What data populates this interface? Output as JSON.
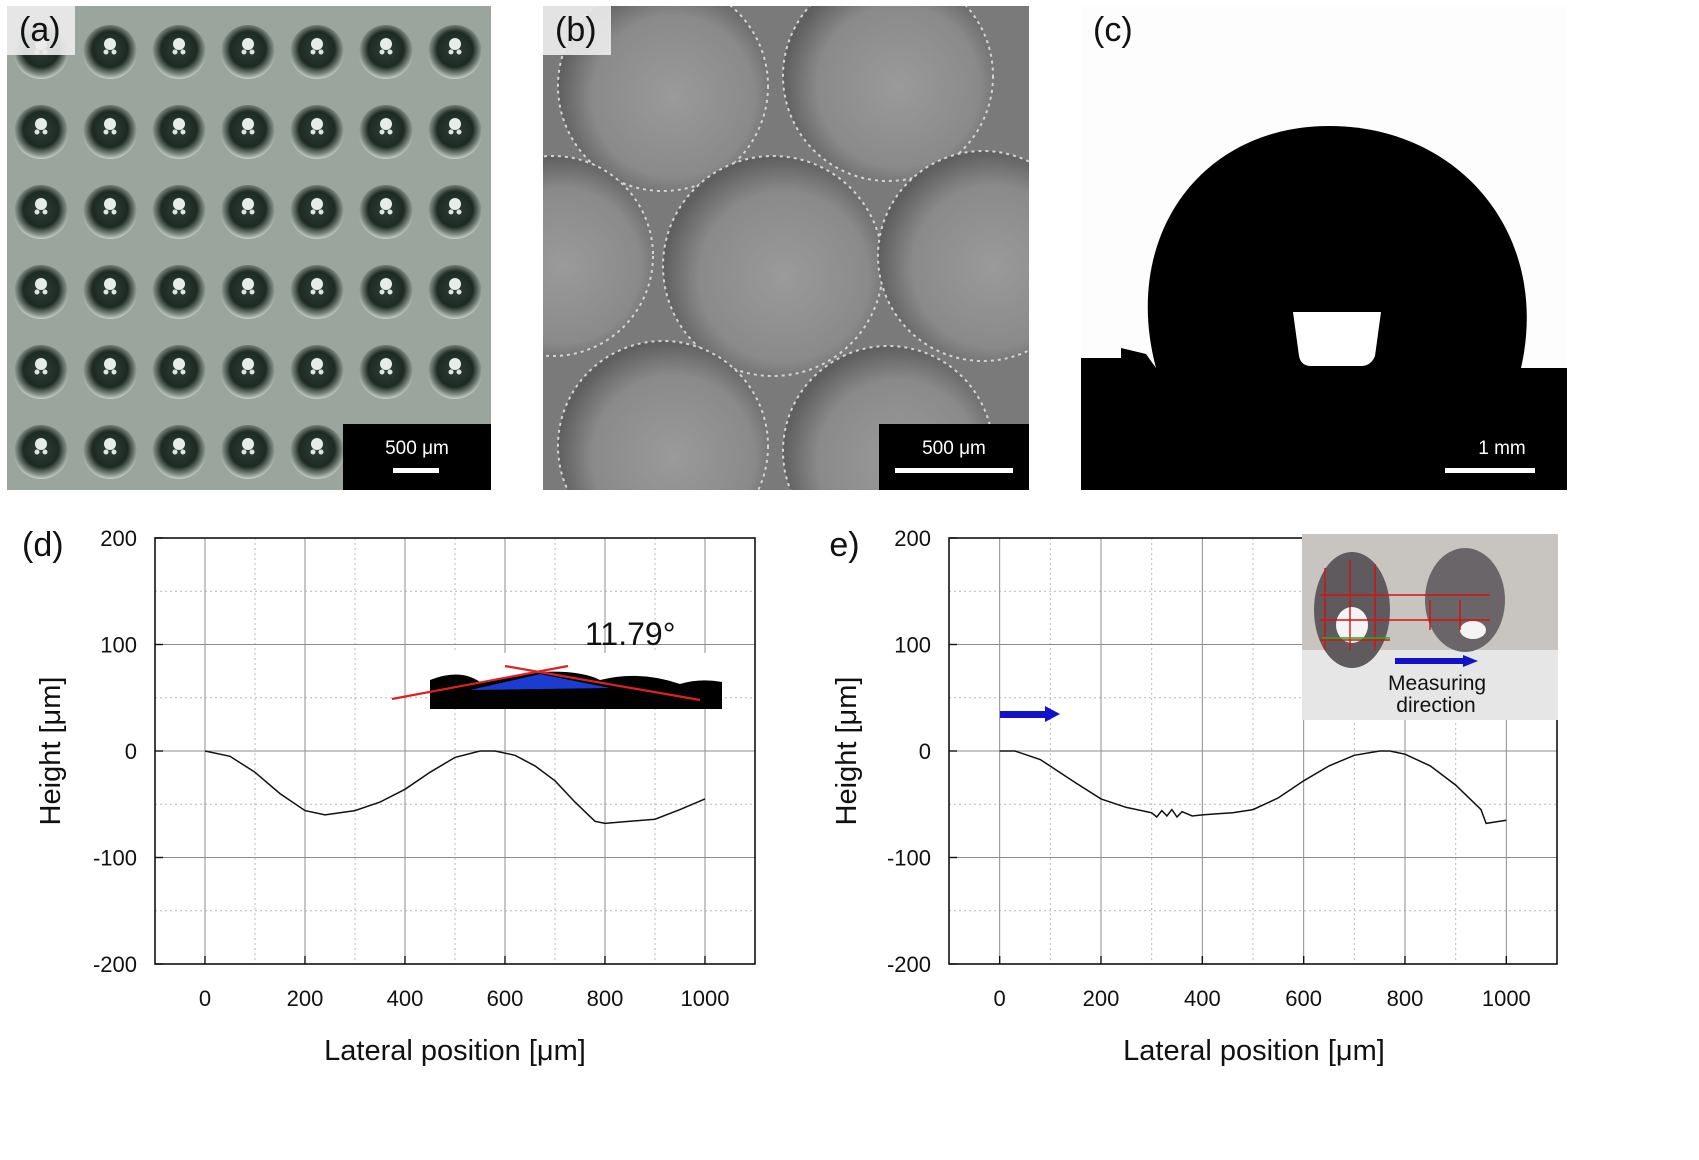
{
  "panels": {
    "a": {
      "label": "(a)",
      "scale": "500 μm"
    },
    "b": {
      "label": "(b)",
      "scale": "500 μm"
    },
    "c": {
      "label": "(c)",
      "scale": "1 mm"
    }
  },
  "colors": {
    "profile": "#111111",
    "fit_line": "#e02020",
    "arrow": "#1212c8",
    "grid": "#9a9a9a"
  },
  "chart_data": [
    {
      "type": "line",
      "panel_label": "(d)",
      "xlabel": "Lateral position [μm]",
      "ylabel": "Height [μm]",
      "xlim": [
        -100,
        1100
      ],
      "ylim": [
        -200,
        200
      ],
      "xticks": [
        0,
        200,
        400,
        600,
        800,
        1000
      ],
      "yticks": [
        200,
        100,
        0,
        -100,
        -200
      ],
      "grid": true,
      "inset_annotation": "11.79°",
      "series": [
        {
          "x": [
            0,
            50,
            100,
            150,
            200,
            240,
            300,
            350,
            400,
            450,
            500,
            550,
            580,
            620,
            660,
            700,
            740,
            780,
            800,
            850,
            900,
            950,
            1000
          ],
          "y": [
            0,
            -5,
            -20,
            -40,
            -56,
            -60,
            -56,
            -48,
            -36,
            -20,
            -6,
            0,
            0,
            -4,
            -14,
            -28,
            -48,
            -66,
            -68,
            -66,
            -64,
            -55,
            -45
          ]
        }
      ]
    },
    {
      "type": "line",
      "panel_label": "(e)",
      "xlabel": "Lateral position [μm]",
      "ylabel": "Height [μm]",
      "xlim": [
        -100,
        1100
      ],
      "ylim": [
        -200,
        200
      ],
      "xticks": [
        0,
        200,
        400,
        600,
        800,
        1000
      ],
      "yticks": [
        200,
        100,
        0,
        -100,
        -200
      ],
      "grid": true,
      "inset_annotation": "Measuring direction",
      "series": [
        {
          "x": [
            0,
            30,
            80,
            150,
            200,
            250,
            300,
            310,
            320,
            330,
            340,
            350,
            360,
            380,
            400,
            430,
            460,
            500,
            550,
            600,
            650,
            700,
            750,
            770,
            800,
            850,
            900,
            950,
            960,
            1000
          ],
          "y": [
            0,
            0,
            -8,
            -30,
            -45,
            -53,
            -58,
            -62,
            -56,
            -61,
            -55,
            -62,
            -57,
            -61,
            -60,
            -59,
            -58,
            -55,
            -44,
            -28,
            -14,
            -4,
            0,
            0,
            -3,
            -14,
            -32,
            -55,
            -68,
            -65
          ]
        }
      ]
    }
  ]
}
